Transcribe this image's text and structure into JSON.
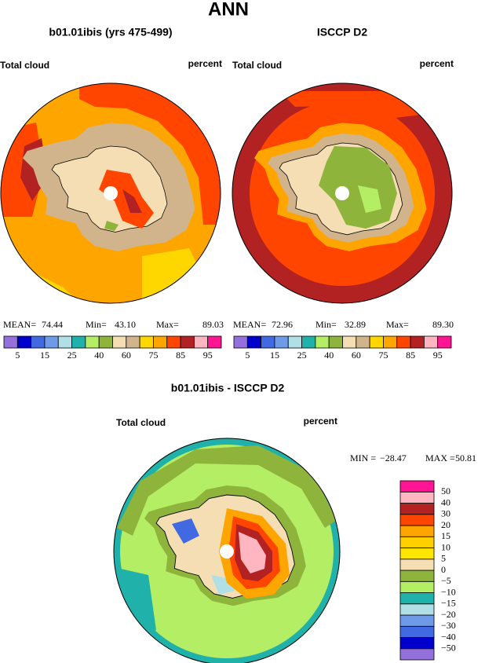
{
  "title": "ANN",
  "panels": [
    {
      "title": "b01.01ibis (yrs 475-499)",
      "left_label": "Total cloud",
      "right_label": "percent",
      "stats": [
        {
          "label": "MEAN=",
          "value": "74.44"
        },
        {
          "label": "Min=",
          "value": "43.10"
        },
        {
          "label": "Max=",
          "value": "89.03"
        }
      ]
    },
    {
      "title": "ISCCP D2",
      "left_label": "Total cloud",
      "right_label": "percent",
      "stats": [
        {
          "label": "MEAN=",
          "value": "72.96"
        },
        {
          "label": "Min=",
          "value": "32.89"
        },
        {
          "label": "Max=",
          "value": "89.30"
        }
      ]
    }
  ],
  "colorbar": {
    "colors": [
      "#9370db",
      "#0000cd",
      "#4169e1",
      "#6f9ae8",
      "#b0e0e6",
      "#20b2aa",
      "#b4ee64",
      "#8fb43c",
      "#f5deb3",
      "#d2b48c",
      "#ffd700",
      "#ffa500",
      "#ff4500",
      "#b22222",
      "#ffb6c1",
      "#ff1493"
    ],
    "labels": [
      "5",
      "15",
      "25",
      "40",
      "60",
      "75",
      "85",
      "95"
    ]
  },
  "difference": {
    "title": "b01.01ibis - ISCCP D2",
    "left_label": "Total cloud",
    "right_label": "percent",
    "stats": [
      {
        "label": "MIN =",
        "value": "−28.47"
      },
      {
        "label": "MAX =",
        "value": "50.81"
      }
    ],
    "colorbar": {
      "colors": [
        "#9370db",
        "#0000cd",
        "#4169e1",
        "#6f9ae8",
        "#b0e0e6",
        "#20b2aa",
        "#b4ee64",
        "#8fb43c",
        "#f5deb3",
        "#ffe600",
        "#ffd000",
        "#ffa500",
        "#ff4500",
        "#b22222",
        "#ffb6c1",
        "#ff1493"
      ],
      "labels": [
        "50",
        "40",
        "30",
        "20",
        "15",
        "10",
        "5",
        "0",
        "−5",
        "−10",
        "−15",
        "−20",
        "−30",
        "−40",
        "−50"
      ]
    }
  }
}
